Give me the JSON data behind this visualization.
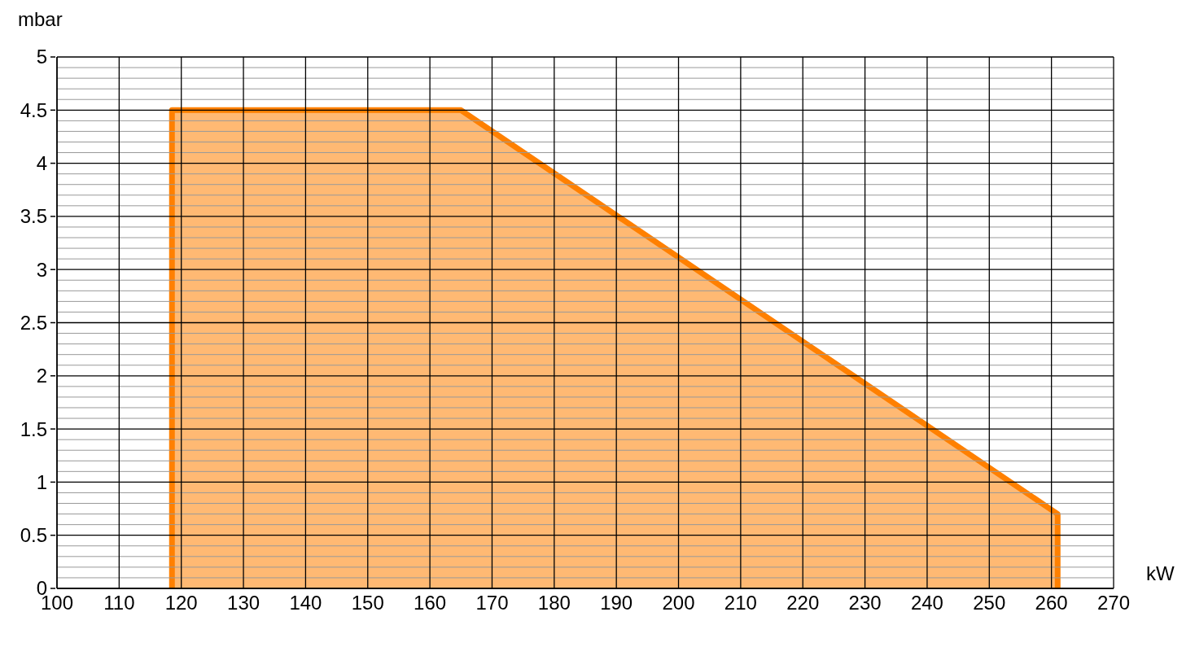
{
  "chart_data": {
    "type": "area",
    "xlabel": "kW",
    "ylabel": "mbar",
    "series": [
      {
        "color": "#ff8000",
        "x": [
          118.5,
          118.5,
          165,
          261,
          261
        ],
        "values": [
          0,
          4.5,
          4.5,
          0.7,
          0
        ]
      }
    ],
    "xlim": [
      100,
      270
    ],
    "xticks": [
      100,
      110,
      120,
      130,
      140,
      150,
      160,
      170,
      180,
      190,
      200,
      210,
      220,
      230,
      240,
      250,
      260,
      270
    ],
    "ylim": [
      0,
      5
    ],
    "yticks": [
      0,
      {
        "value": 0.1,
        "label": null
      },
      {
        "value": 0.2,
        "label": null
      },
      {
        "value": 0.3,
        "label": null
      },
      {
        "value": 0.4,
        "label": null
      },
      0.5,
      {
        "value": 0.6,
        "label": null
      },
      {
        "value": 0.7,
        "label": null
      },
      {
        "value": 0.8,
        "label": null
      },
      {
        "value": 0.9,
        "label": null
      },
      1,
      {
        "value": 1.1,
        "label": null
      },
      {
        "value": 1.2,
        "label": null
      },
      {
        "value": 1.3,
        "label": null
      },
      {
        "value": 1.4,
        "label": null
      },
      1.5,
      {
        "value": 1.6,
        "label": null
      },
      {
        "value": 1.7,
        "label": null
      },
      {
        "value": 1.8,
        "label": null
      },
      {
        "value": 1.9,
        "label": null
      },
      2,
      {
        "value": 2.1,
        "label": null
      },
      {
        "value": 2.2,
        "label": null
      },
      {
        "value": 2.3,
        "label": null
      },
      {
        "value": 2.4,
        "label": null
      },
      2.5,
      {
        "value": 2.6,
        "label": null
      },
      {
        "value": 2.7,
        "label": null
      },
      {
        "value": 2.8,
        "label": null
      },
      {
        "value": 2.9,
        "label": null
      },
      3,
      {
        "value": 3.1,
        "label": null
      },
      {
        "value": 3.2,
        "label": null
      },
      {
        "value": 3.3,
        "label": null
      },
      {
        "value": 3.4,
        "label": null
      },
      3.5,
      {
        "value": 3.6,
        "label": null
      },
      {
        "value": 3.7,
        "label": null
      },
      {
        "value": 3.8,
        "label": null
      },
      {
        "value": 3.9,
        "label": null
      },
      4,
      {
        "value": 4.1,
        "label": null
      },
      {
        "value": 4.2,
        "label": null
      },
      {
        "value": 4.3,
        "label": null
      },
      {
        "value": 4.4,
        "label": null
      },
      4.5,
      {
        "value": 4.6,
        "label": null
      },
      {
        "value": 4.7,
        "label": null
      },
      {
        "value": 4.8,
        "label": null
      },
      {
        "value": 4.9,
        "label": null
      },
      5
    ],
    "grid": true
  }
}
